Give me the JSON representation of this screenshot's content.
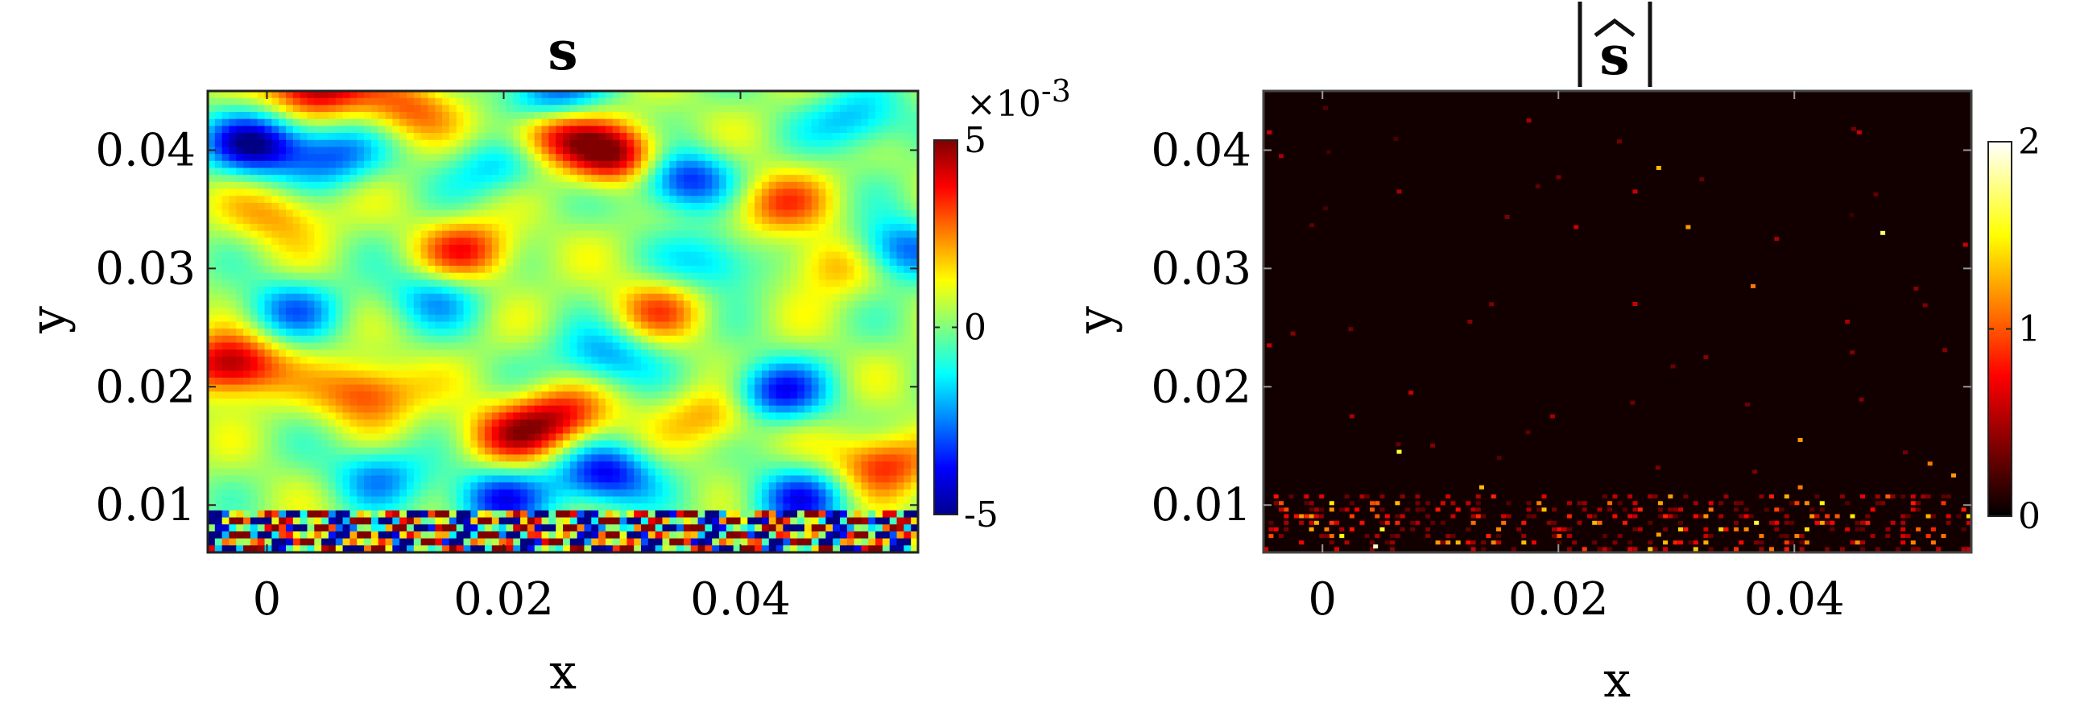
{
  "figure": {
    "colorbar_multiplier_base": "×10",
    "colorbar_multiplier_exp": "-3"
  },
  "chart_data": [
    {
      "type": "heatmap",
      "title": "s",
      "xlabel": "x",
      "ylabel": "y",
      "xlim": [
        -0.005,
        0.055
      ],
      "ylim": [
        0.006,
        0.045
      ],
      "xticks": [
        0,
        0.02,
        0.04
      ],
      "xtick_labels": [
        "0",
        "0.02",
        "0.04"
      ],
      "yticks": [
        0.01,
        0.02,
        0.03,
        0.04
      ],
      "ytick_labels": [
        "0.01",
        "0.02",
        "0.03",
        "0.04"
      ],
      "colormap": "jet",
      "clim": [
        -5,
        5
      ],
      "colorbar_ticks": [
        -5,
        0,
        5
      ],
      "colorbar_tick_labels": [
        "-5",
        "0",
        "5"
      ],
      "colorbar_scale": "×10^-3",
      "grid": false,
      "blobs": [
        {
          "x": -0.003,
          "y": 0.0218,
          "v": 4.8
        },
        {
          "x": 0.0295,
          "y": 0.0395,
          "v": 4.6
        },
        {
          "x": 0.024,
          "y": 0.0415,
          "v": 3.6
        },
        {
          "x": 0.0085,
          "y": 0.0195,
          "v": 3.2
        },
        {
          "x": 0.0205,
          "y": 0.0158,
          "v": 3.0
        },
        {
          "x": 0.025,
          "y": 0.0175,
          "v": 3.4
        },
        {
          "x": 0.017,
          "y": 0.0315,
          "v": 3.1
        },
        {
          "x": 0.052,
          "y": 0.0135,
          "v": 3.3
        },
        {
          "x": 0.043,
          "y": 0.0355,
          "v": 2.6
        },
        {
          "x": 0.048,
          "y": 0.0305,
          "v": 2.4
        },
        {
          "x": 0.038,
          "y": 0.0175,
          "v": 2.2
        },
        {
          "x": 0.004,
          "y": 0.0455,
          "v": 4.9
        },
        {
          "x": 0.012,
          "y": 0.0435,
          "v": 2.5
        },
        {
          "x": 0.033,
          "y": 0.0265,
          "v": 2.3
        },
        {
          "x": 0.001,
          "y": 0.0345,
          "v": 2.0
        },
        {
          "x": -0.001,
          "y": 0.0405,
          "v": -4.9
        },
        {
          "x": 0.035,
          "y": 0.0375,
          "v": -4.2
        },
        {
          "x": 0.0285,
          "y": 0.0125,
          "v": -4.3
        },
        {
          "x": 0.043,
          "y": 0.0195,
          "v": -4.0
        },
        {
          "x": 0.0285,
          "y": 0.0225,
          "v": -2.6
        },
        {
          "x": 0.0055,
          "y": 0.0395,
          "v": -3.0
        },
        {
          "x": 0.053,
          "y": 0.0315,
          "v": -3.6
        },
        {
          "x": 0.0195,
          "y": 0.0105,
          "v": -3.6
        },
        {
          "x": 0.045,
          "y": 0.0105,
          "v": -3.5
        },
        {
          "x": 0.002,
          "y": 0.0265,
          "v": -2.6
        },
        {
          "x": 0.0095,
          "y": 0.0125,
          "v": -2.5
        },
        {
          "x": 0.014,
          "y": 0.0275,
          "v": -2.2
        },
        {
          "x": 0.024,
          "y": 0.0445,
          "v": -3.6
        },
        {
          "x": 0.0195,
          "y": 0.0385,
          "v": -2.1
        },
        {
          "x": 0.05,
          "y": 0.0425,
          "v": -2.4
        },
        {
          "x": 0.038,
          "y": 0.0305,
          "v": -2.3
        }
      ],
      "wall_band": {
        "y_min": 0.006,
        "y_max": 0.0095,
        "amplitude": 5
      }
    },
    {
      "type": "heatmap",
      "title": "|ŝ|",
      "xlabel": "x",
      "ylabel": "y",
      "xlim": [
        -0.005,
        0.055
      ],
      "ylim": [
        0.006,
        0.045
      ],
      "xticks": [
        0,
        0.02,
        0.04
      ],
      "xtick_labels": [
        "0",
        "0.02",
        "0.04"
      ],
      "yticks": [
        0.01,
        0.02,
        0.03,
        0.04
      ],
      "ytick_labels": [
        "0.01",
        "0.02",
        "0.03",
        "0.04"
      ],
      "colormap": "hot",
      "clim": [
        0,
        2
      ],
      "colorbar_ticks": [
        0,
        1,
        2
      ],
      "colorbar_tick_labels": [
        "0",
        "1",
        "2"
      ],
      "grid": false,
      "peaks": [
        {
          "x": -0.0045,
          "y": 0.0415,
          "v": 0.6
        },
        {
          "x": -0.0035,
          "y": 0.0395,
          "v": 0.5
        },
        {
          "x": 0.0175,
          "y": 0.0425,
          "v": 0.5
        },
        {
          "x": 0.0285,
          "y": 0.0385,
          "v": 1.3
        },
        {
          "x": 0.0265,
          "y": 0.0365,
          "v": 0.6
        },
        {
          "x": 0.0065,
          "y": 0.0365,
          "v": 0.5
        },
        {
          "x": 0.0215,
          "y": 0.0335,
          "v": 0.6
        },
        {
          "x": 0.031,
          "y": 0.0335,
          "v": 1.2
        },
        {
          "x": 0.0475,
          "y": 0.033,
          "v": 1.7
        },
        {
          "x": 0.0455,
          "y": 0.0415,
          "v": 0.6
        },
        {
          "x": 0.0365,
          "y": 0.0285,
          "v": 1.1
        },
        {
          "x": 0.0265,
          "y": 0.027,
          "v": 0.6
        },
        {
          "x": 0.0385,
          "y": 0.0325,
          "v": 0.5
        },
        {
          "x": 0.0545,
          "y": 0.032,
          "v": 0.6
        },
        {
          "x": -0.0045,
          "y": 0.0235,
          "v": 0.6
        },
        {
          "x": -0.0025,
          "y": 0.0245,
          "v": 0.4
        },
        {
          "x": 0.0025,
          "y": 0.0175,
          "v": 0.5
        },
        {
          "x": 0.0075,
          "y": 0.0195,
          "v": 0.6
        },
        {
          "x": 0.0065,
          "y": 0.0145,
          "v": 1.6
        },
        {
          "x": 0.0195,
          "y": 0.0175,
          "v": 0.5
        },
        {
          "x": 0.0405,
          "y": 0.0155,
          "v": 1.2
        },
        {
          "x": 0.0515,
          "y": 0.0135,
          "v": 1.1
        },
        {
          "x": 0.0445,
          "y": 0.0255,
          "v": 0.5
        },
        {
          "x": 0.0535,
          "y": 0.0125,
          "v": 1.2
        },
        {
          "x": 0.0135,
          "y": 0.0115,
          "v": 1.3
        },
        {
          "x": 0.0405,
          "y": 0.0115,
          "v": 1.1
        },
        {
          "x": 0.0325,
          "y": 0.0225,
          "v": 0.4
        },
        {
          "x": 0.0125,
          "y": 0.0255,
          "v": 0.4
        },
        {
          "x": 0.0045,
          "y": 0.0065,
          "v": 1.9
        },
        {
          "x": 0.0285,
          "y": 0.0075,
          "v": 1.2
        }
      ],
      "wall_band": {
        "y_min": 0.006,
        "y_max": 0.011,
        "density": 0.28
      }
    }
  ]
}
